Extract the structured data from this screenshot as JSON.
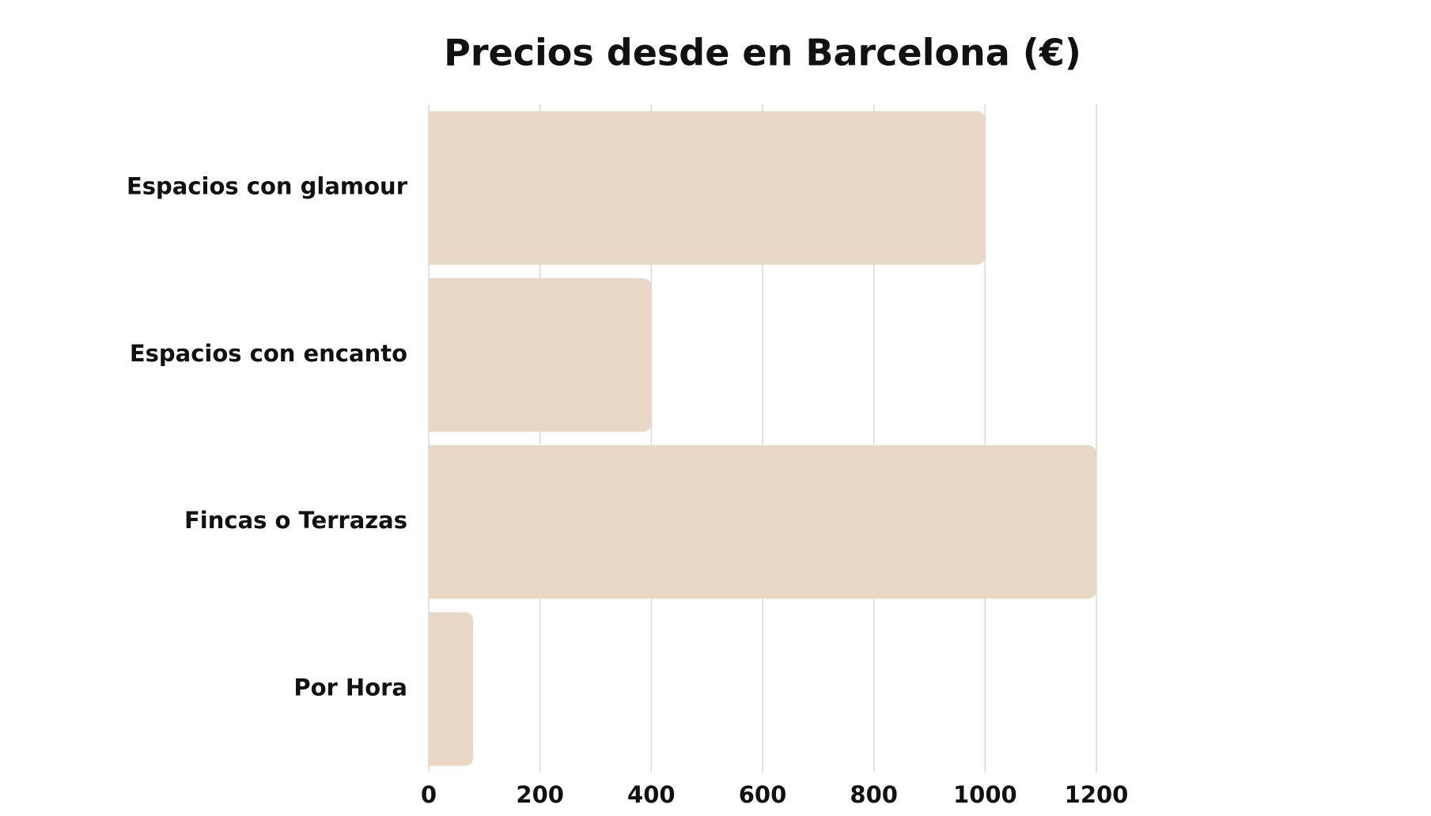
{
  "chart_data": {
    "type": "barh",
    "title": "Precios desde en Barcelona (€)",
    "categories": [
      "Espacios con glamour",
      "Espacios con encanto",
      "Fincas o Terrazas",
      "Por Hora"
    ],
    "values": [
      1000,
      400,
      1200,
      80
    ],
    "color": "#e8d8c5",
    "xlim": [
      0,
      1200
    ],
    "xticks": [
      0,
      200,
      400,
      600,
      800,
      1000,
      1200
    ],
    "grid": true
  }
}
